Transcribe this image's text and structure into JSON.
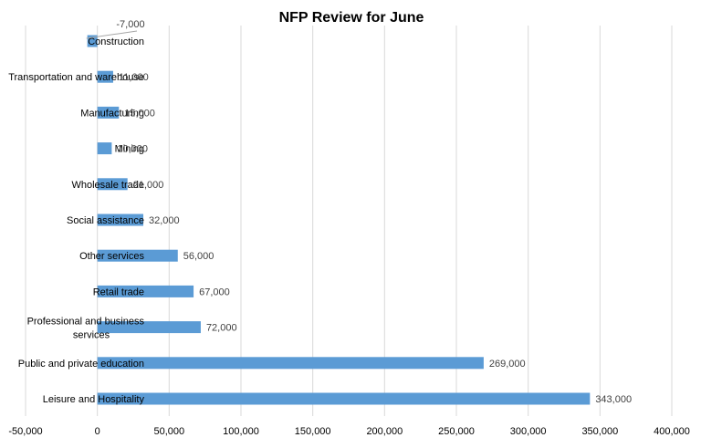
{
  "chart_data": {
    "type": "bar",
    "orientation": "horizontal",
    "title": "NFP Review for June",
    "categories": [
      "Construction",
      "Transportation and warehouse",
      "Manufacturing",
      "Mining",
      "Wholesale trade",
      "Social assistance",
      "Other services",
      "Retail trade",
      "Professional and business services",
      "Public and private education",
      "Leisure and Hospitality"
    ],
    "values": [
      -7000,
      11000,
      15000,
      10000,
      21000,
      32000,
      56000,
      67000,
      72000,
      269000,
      343000
    ],
    "data_labels": [
      "-7,000",
      "11,000",
      "15,000",
      "10,000",
      "21,000",
      "32,000",
      "56,000",
      "67,000",
      "72,000",
      "269,000",
      "343,000"
    ],
    "xlim": [
      -50000,
      400000
    ],
    "xticks": [
      -50000,
      0,
      50000,
      100000,
      150000,
      200000,
      250000,
      300000,
      350000,
      400000
    ],
    "xtick_labels": [
      "-50,000",
      "0",
      "50,000",
      "100,000",
      "150,000",
      "200,000",
      "250,000",
      "300,000",
      "350,000",
      "400,000"
    ],
    "grid": "vertical",
    "legend": "none",
    "bar_color": "#5b9bd5"
  }
}
